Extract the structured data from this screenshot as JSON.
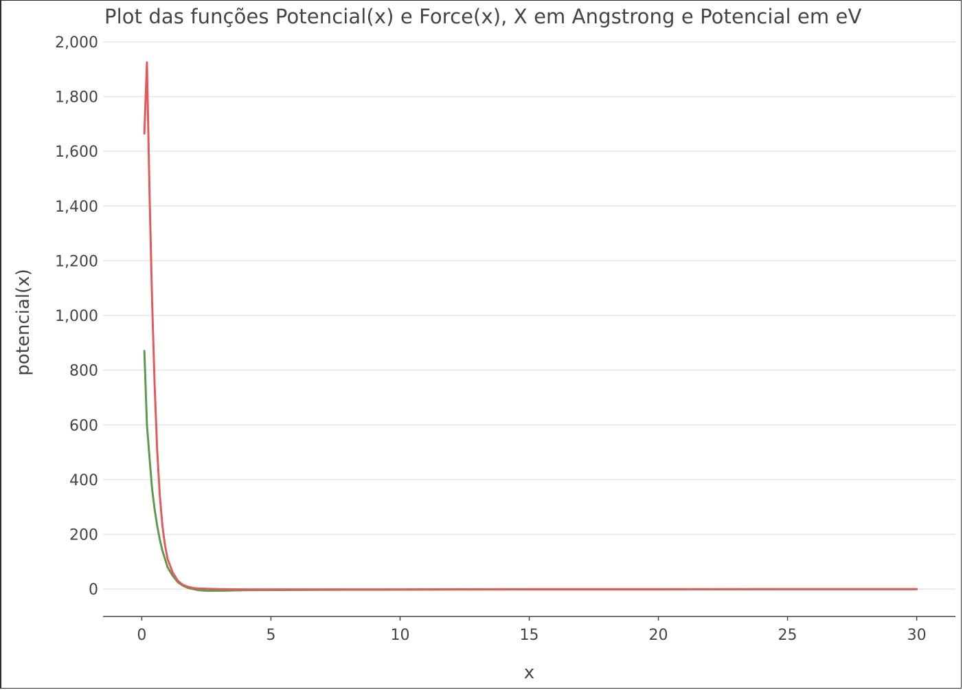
{
  "chart_data": {
    "type": "line",
    "title": "Plot das funções Potencial(x) e Force(x), X em Angstrong e Potencial em eV",
    "xlabel": "x",
    "ylabel": "potencial(x)",
    "xlim": [
      -1.5,
      31.5
    ],
    "ylim": [
      -100,
      2050
    ],
    "x_ticks": [
      0,
      5,
      10,
      15,
      20,
      25,
      30
    ],
    "x_tick_labels": [
      "0",
      "5",
      "10",
      "15",
      "20",
      "25",
      "30"
    ],
    "y_ticks": [
      0,
      200,
      400,
      600,
      800,
      1000,
      1200,
      1400,
      1600,
      1800,
      2000
    ],
    "y_tick_labels": [
      "0",
      "200",
      "400",
      "600",
      "800",
      "1,000",
      "1,200",
      "1,400",
      "1,600",
      "1,800",
      "2,000"
    ],
    "grid": true,
    "legend": "none",
    "series": [
      {
        "color": "#5b9a4f",
        "x": [
          0.1,
          0.2,
          0.3,
          0.4,
          0.5,
          0.6,
          0.7,
          0.8,
          1.0,
          1.2,
          1.4,
          1.6,
          1.8,
          2.0,
          2.2,
          2.5,
          3.0,
          4.0,
          6.0,
          10.0,
          15.0,
          20.0,
          25.0,
          30.0
        ],
        "y": [
          870,
          600,
          480,
          365,
          290,
          230,
          180,
          140,
          80,
          48,
          25,
          12,
          4,
          0,
          -4,
          -6,
          -6,
          -4,
          -3,
          -2,
          -1,
          -1,
          0,
          0
        ]
      },
      {
        "color": "#e45a5a",
        "x": [
          0.1,
          0.2,
          0.3,
          0.4,
          0.5,
          0.6,
          0.7,
          0.8,
          0.9,
          1.0,
          1.2,
          1.4,
          1.6,
          1.8,
          2.0,
          2.2,
          2.5,
          3.0,
          4.0,
          6.0,
          10.0,
          15.0,
          20.0,
          25.0,
          30.0
        ],
        "y": [
          1665,
          1925,
          1450,
          1050,
          740,
          500,
          340,
          230,
          160,
          110,
          60,
          30,
          15,
          8,
          4,
          2,
          1,
          0,
          -1,
          -1,
          -1,
          0,
          0,
          0,
          0
        ]
      }
    ]
  }
}
